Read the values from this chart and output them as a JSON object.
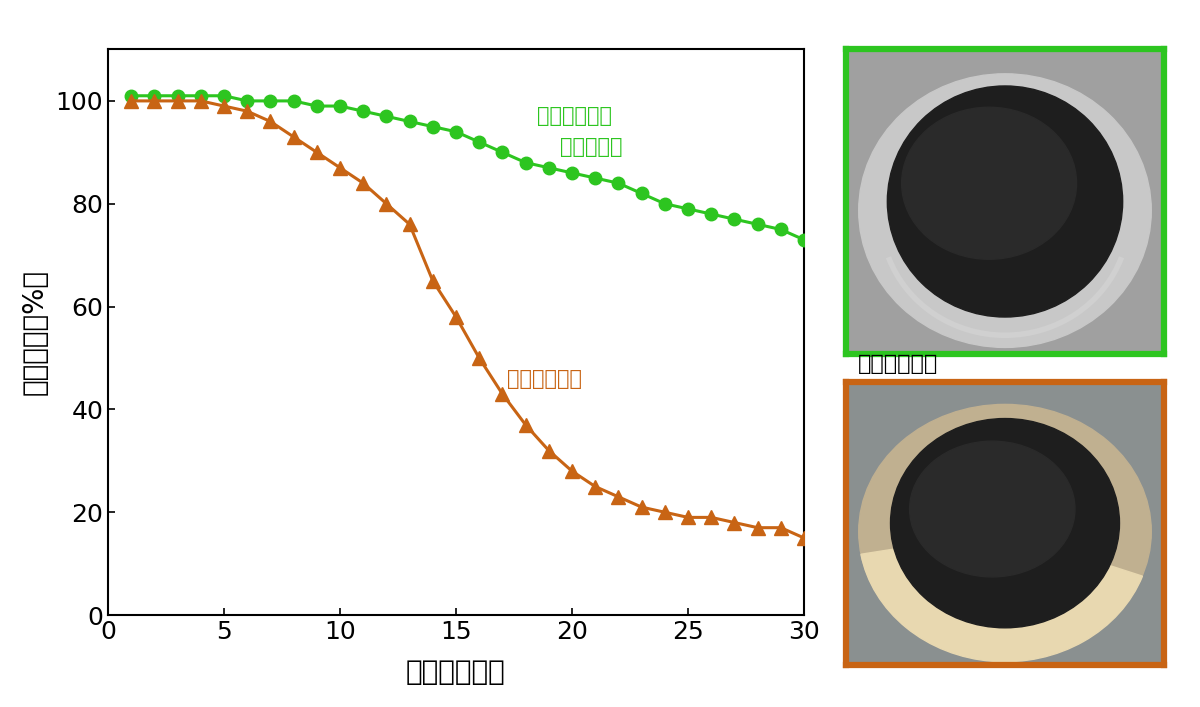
{
  "xlabel": "サイクル回数",
  "ylabel": "放電容量（%）",
  "xlim": [
    0,
    30
  ],
  "ylim": [
    0,
    110
  ],
  "yticks": [
    0,
    20,
    40,
    60,
    80,
    100
  ],
  "xticks": [
    0,
    5,
    10,
    15,
    20,
    25,
    30
  ],
  "green_color": "#2dc520",
  "orange_color": "#c86414",
  "green_label_line1": "当社バインダ",
  "green_label_line2": "（開発品）",
  "orange_label": "市販バインダ",
  "image_label": "評価後の負極",
  "green_x": [
    1,
    2,
    3,
    4,
    5,
    6,
    7,
    8,
    9,
    10,
    11,
    12,
    13,
    14,
    15,
    16,
    17,
    18,
    19,
    20,
    21,
    22,
    23,
    24,
    25,
    26,
    27,
    28,
    29,
    30
  ],
  "green_y": [
    101,
    101,
    101,
    101,
    101,
    100,
    100,
    100,
    99,
    99,
    98,
    97,
    96,
    95,
    94,
    92,
    90,
    88,
    87,
    86,
    85,
    84,
    82,
    80,
    79,
    78,
    77,
    76,
    75,
    73
  ],
  "orange_x": [
    1,
    2,
    3,
    4,
    5,
    6,
    7,
    8,
    9,
    10,
    11,
    12,
    13,
    14,
    15,
    16,
    17,
    18,
    19,
    20,
    21,
    22,
    23,
    24,
    25,
    26,
    27,
    28,
    29,
    30
  ],
  "orange_y": [
    100,
    100,
    100,
    100,
    99,
    98,
    96,
    93,
    90,
    87,
    84,
    80,
    76,
    65,
    58,
    50,
    43,
    37,
    32,
    28,
    25,
    23,
    21,
    20,
    19,
    19,
    18,
    17,
    17,
    15
  ],
  "background_color": "#ffffff",
  "green_border_color": "#2dc520",
  "orange_border_color": "#c86414"
}
